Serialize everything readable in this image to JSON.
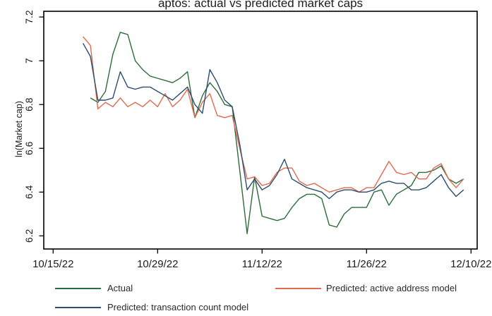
{
  "title": "aptos: actual vs predicted market caps",
  "y_axis_label": "ln(Market cap)",
  "chart_data": {
    "type": "line",
    "title": "aptos: actual vs predicted market caps",
    "xlabel": "",
    "ylabel": "ln(Market cap)",
    "ylim": [
      6.2,
      7.2
    ],
    "grid": false,
    "legend_position": "bottom",
    "x_dates": [
      "10/19/22",
      "10/20/22",
      "10/21/22",
      "10/22/22",
      "10/23/22",
      "10/24/22",
      "10/25/22",
      "10/26/22",
      "10/27/22",
      "10/28/22",
      "10/29/22",
      "10/30/22",
      "10/31/22",
      "11/01/22",
      "11/02/22",
      "11/03/22",
      "11/04/22",
      "11/05/22",
      "11/06/22",
      "11/07/22",
      "11/08/22",
      "11/09/22",
      "11/10/22",
      "11/11/22",
      "11/12/22",
      "11/13/22",
      "11/14/22",
      "11/15/22",
      "11/16/22",
      "11/17/22",
      "11/18/22",
      "11/19/22",
      "11/20/22",
      "11/21/22",
      "11/22/22",
      "11/23/22",
      "11/24/22",
      "11/25/22",
      "11/26/22",
      "11/27/22",
      "11/28/22",
      "11/29/22",
      "11/30/22",
      "12/01/22",
      "12/02/22",
      "12/03/22",
      "12/04/22",
      "12/05/22",
      "12/06/22",
      "12/07/22",
      "12/08/22",
      "12/09/22"
    ],
    "series": [
      {
        "name": "Actual",
        "color": "#2d6b3a",
        "values": [
          null,
          6.83,
          6.81,
          6.86,
          7.03,
          7.13,
          7.12,
          7.0,
          6.96,
          6.93,
          6.92,
          6.91,
          6.9,
          6.92,
          6.95,
          6.74,
          6.84,
          6.9,
          6.86,
          6.8,
          6.79,
          6.5,
          6.21,
          6.47,
          6.29,
          6.28,
          6.27,
          6.28,
          6.33,
          6.37,
          6.39,
          6.39,
          6.37,
          6.25,
          6.24,
          6.3,
          6.33,
          6.33,
          6.33,
          6.4,
          6.41,
          6.34,
          6.39,
          6.41,
          6.43,
          6.49,
          6.49,
          6.5,
          6.52,
          6.46,
          6.44,
          6.46
        ]
      },
      {
        "name": "Predicted: active address model",
        "color": "#df6a50",
        "values": [
          7.11,
          7.07,
          6.78,
          6.81,
          6.79,
          6.83,
          6.79,
          6.81,
          6.79,
          6.82,
          6.79,
          6.85,
          6.79,
          6.82,
          6.87,
          6.74,
          6.81,
          6.85,
          6.75,
          6.74,
          6.75,
          6.6,
          6.46,
          6.47,
          6.43,
          6.44,
          6.49,
          6.51,
          6.51,
          6.45,
          6.43,
          6.44,
          6.42,
          6.4,
          6.41,
          6.42,
          6.42,
          6.4,
          6.42,
          6.42,
          6.48,
          6.54,
          6.49,
          6.48,
          6.49,
          6.46,
          6.46,
          6.51,
          6.53,
          6.46,
          6.42,
          6.46
        ]
      },
      {
        "name": "Predicted: transaction count model",
        "color": "#2c4d6e",
        "values": [
          7.08,
          7.02,
          6.82,
          6.82,
          6.83,
          6.95,
          6.88,
          6.87,
          6.88,
          6.88,
          6.86,
          6.84,
          6.82,
          6.85,
          6.88,
          6.8,
          6.76,
          6.96,
          6.9,
          6.82,
          6.79,
          6.62,
          6.41,
          6.46,
          6.41,
          6.43,
          6.48,
          6.55,
          6.46,
          6.44,
          6.42,
          6.41,
          6.4,
          6.37,
          6.4,
          6.41,
          6.41,
          6.4,
          6.4,
          6.41,
          6.44,
          6.45,
          6.44,
          6.44,
          6.41,
          6.41,
          6.42,
          6.45,
          6.48,
          6.42,
          6.38,
          6.41
        ]
      }
    ],
    "y_ticks": {
      "values": [
        7.2,
        7.0,
        6.8,
        6.6,
        6.4,
        6.2
      ],
      "labels": [
        "7.2",
        "7",
        "6.8",
        "6.6",
        "6.4",
        "6.2"
      ]
    },
    "x_ticks": {
      "day_offsets": [
        -4,
        10,
        24,
        38,
        52
      ],
      "labels": [
        "10/15/22",
        "10/29/22",
        "11/12/22",
        "11/26/22",
        "12/10/22"
      ]
    },
    "legend": [
      {
        "label": "Actual",
        "series": 0
      },
      {
        "label": "Predicted: active address model",
        "series": 1
      },
      {
        "label": "Predicted: transaction count model",
        "series": 2
      }
    ]
  }
}
